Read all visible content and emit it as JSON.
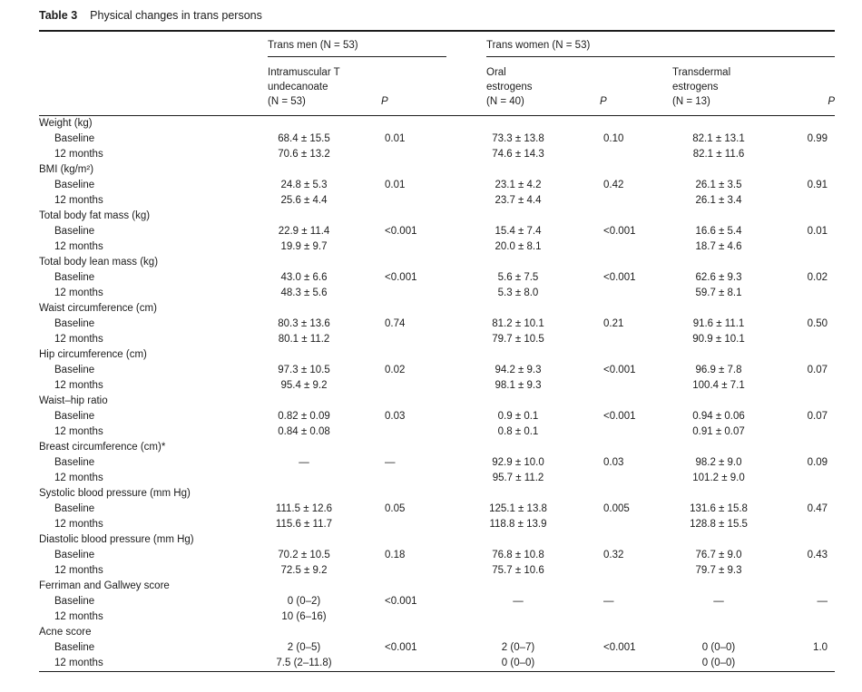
{
  "title": {
    "label": "Table 3",
    "text": "Physical changes in trans persons"
  },
  "groups": {
    "trans_men": "Trans men (N = 53)",
    "trans_women": "Trans women (N = 53)"
  },
  "columns": [
    {
      "line1": "Intramuscular T",
      "line2": "undecanoate",
      "line3": "(N = 53)"
    },
    {
      "line1": "P"
    },
    {
      "line1": "Oral",
      "line2": "estrogens",
      "line3": "(N = 40)"
    },
    {
      "line1": "P"
    },
    {
      "line1": "Transdermal",
      "line2": "estrogens",
      "line3": "(N = 13)"
    },
    {
      "line1": "P"
    }
  ],
  "sections": [
    {
      "label": "Weight (kg)",
      "rows": [
        {
          "label": "Baseline",
          "values": [
            "68.4 ± 15.5",
            "0.01",
            "73.3 ± 13.8",
            "0.10",
            "82.1 ± 13.1",
            "0.99"
          ]
        },
        {
          "label": "12 months",
          "values": [
            "70.6 ± 13.2",
            "",
            "74.6 ± 14.3",
            "",
            "82.1 ± 11.6",
            ""
          ]
        }
      ]
    },
    {
      "label": "BMI (kg/m²)",
      "rows": [
        {
          "label": "Baseline",
          "values": [
            "24.8 ± 5.3",
            "0.01",
            "23.1 ± 4.2",
            "0.42",
            "26.1 ± 3.5",
            "0.91"
          ]
        },
        {
          "label": "12 months",
          "values": [
            "25.6 ± 4.4",
            "",
            "23.7 ± 4.4",
            "",
            "26.1 ± 3.4",
            ""
          ]
        }
      ]
    },
    {
      "label": "Total body fat mass (kg)",
      "rows": [
        {
          "label": "Baseline",
          "values": [
            "22.9 ± 11.4",
            "<0.001",
            "15.4 ± 7.4",
            "<0.001",
            "16.6 ± 5.4",
            "0.01"
          ]
        },
        {
          "label": "12 months",
          "values": [
            "19.9 ± 9.7",
            "",
            "20.0 ± 8.1",
            "",
            "18.7 ± 4.6",
            ""
          ]
        }
      ]
    },
    {
      "label": "Total body lean mass (kg)",
      "rows": [
        {
          "label": "Baseline",
          "values": [
            "43.0 ± 6.6",
            "<0.001",
            "5.6 ± 7.5",
            "<0.001",
            "62.6 ± 9.3",
            "0.02"
          ]
        },
        {
          "label": "12 months",
          "values": [
            "48.3 ± 5.6",
            "",
            "5.3 ± 8.0",
            "",
            "59.7 ± 8.1",
            ""
          ]
        }
      ]
    },
    {
      "label": "Waist circumference (cm)",
      "rows": [
        {
          "label": "Baseline",
          "values": [
            "80.3 ± 13.6",
            "0.74",
            "81.2 ± 10.1",
            "0.21",
            "91.6 ± 11.1",
            "0.50"
          ]
        },
        {
          "label": "12 months",
          "values": [
            "80.1 ± 11.2",
            "",
            "79.7 ± 10.5",
            "",
            "90.9 ± 10.1",
            ""
          ]
        }
      ]
    },
    {
      "label": "Hip circumference (cm)",
      "rows": [
        {
          "label": "Baseline",
          "values": [
            "97.3 ± 10.5",
            "0.02",
            "94.2 ± 9.3",
            "<0.001",
            "96.9 ± 7.8",
            "0.07"
          ]
        },
        {
          "label": "12 months",
          "values": [
            "95.4 ± 9.2",
            "",
            "98.1 ± 9.3",
            "",
            "100.4 ± 7.1",
            ""
          ]
        }
      ]
    },
    {
      "label": "Waist–hip ratio",
      "rows": [
        {
          "label": "Baseline",
          "values": [
            "0.82 ± 0.09",
            "0.03",
            "0.9 ± 0.1",
            "<0.001",
            "0.94 ± 0.06",
            "0.07"
          ]
        },
        {
          "label": "12 months",
          "values": [
            "0.84 ± 0.08",
            "",
            "0.8 ± 0.1",
            "",
            "0.91 ± 0.07",
            ""
          ]
        }
      ]
    },
    {
      "label": "Breast circumference (cm)*",
      "rows": [
        {
          "label": "Baseline",
          "values": [
            "—",
            "—",
            "92.9 ± 10.0",
            "0.03",
            "98.2 ± 9.0",
            "0.09"
          ]
        },
        {
          "label": "12 months",
          "values": [
            "",
            "",
            "95.7 ± 11.2",
            "",
            "101.2 ± 9.0",
            ""
          ]
        }
      ]
    },
    {
      "label": "Systolic blood pressure (mm Hg)",
      "rows": [
        {
          "label": "Baseline",
          "values": [
            "111.5 ± 12.6",
            "0.05",
            "125.1 ± 13.8",
            "0.005",
            "131.6 ± 15.8",
            "0.47"
          ]
        },
        {
          "label": "12 months",
          "values": [
            "115.6 ± 11.7",
            "",
            "118.8 ± 13.9",
            "",
            "128.8 ± 15.5",
            ""
          ]
        }
      ]
    },
    {
      "label": "Diastolic blood pressure (mm Hg)",
      "rows": [
        {
          "label": "Baseline",
          "values": [
            "70.2 ± 10.5",
            "0.18",
            "76.8 ± 10.8",
            "0.32",
            "76.7 ± 9.0",
            "0.43"
          ]
        },
        {
          "label": "12 months",
          "values": [
            "72.5 ± 9.2",
            "",
            "75.7 ± 10.6",
            "",
            "79.7 ± 9.3",
            ""
          ]
        }
      ]
    },
    {
      "label": "Ferriman and Gallwey score",
      "rows": [
        {
          "label": "Baseline",
          "values": [
            "0 (0–2)",
            "<0.001",
            "—",
            "—",
            "—",
            "—"
          ]
        },
        {
          "label": "12 months",
          "values": [
            "10 (6–16)",
            "",
            "",
            "",
            "",
            ""
          ]
        }
      ]
    },
    {
      "label": "Acne score",
      "rows": [
        {
          "label": "Baseline",
          "values": [
            "2 (0–5)",
            "<0.001",
            "2 (0–7)",
            "<0.001",
            "0 (0–0)",
            "1.0"
          ]
        },
        {
          "label": "12 months",
          "values": [
            "7.5 (2–11.8)",
            "",
            "0 (0–0)",
            "",
            "0 (0–0)",
            ""
          ]
        }
      ]
    }
  ]
}
